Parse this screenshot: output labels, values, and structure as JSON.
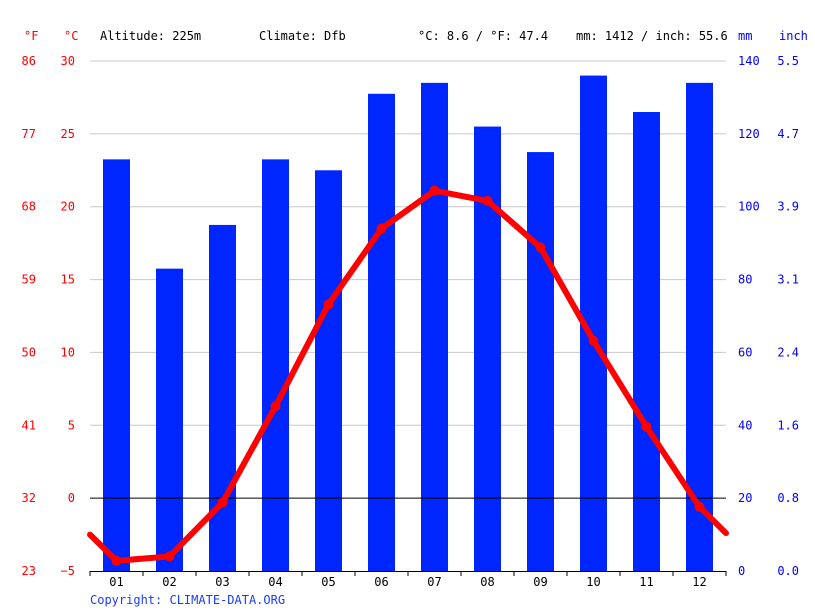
{
  "header": {
    "unit_f": "°F",
    "unit_c": "°C",
    "altitude": "Altitude: 225m",
    "climate": "Climate: Dfb",
    "temp_avg": "°C: 8.6 / °F: 47.4",
    "precip_total": "mm: 1412 / inch: 55.6",
    "unit_mm": "mm",
    "unit_inch": "inch"
  },
  "footer": {
    "copyright": "Copyright: CLIMATE-DATA.ORG"
  },
  "colors": {
    "temperature": "#ff0000",
    "precipitation": "#0026ff",
    "axis_left": "#ff0000",
    "axis_right": "#0000ff"
  },
  "chart_data": {
    "type": "bar",
    "categories": [
      "01",
      "02",
      "03",
      "04",
      "05",
      "06",
      "07",
      "08",
      "09",
      "10",
      "11",
      "12"
    ],
    "series": [
      {
        "kind": "bar",
        "axis": "right_mm",
        "values": [
          113,
          83,
          95,
          113,
          110,
          131,
          134,
          122,
          115,
          136,
          126,
          134
        ]
      },
      {
        "kind": "line",
        "axis": "left_c",
        "values": [
          -4.3,
          -4.0,
          -0.3,
          6.3,
          13.3,
          18.5,
          21.1,
          20.4,
          17.2,
          10.8,
          4.9,
          -0.6
        ]
      }
    ],
    "line_start_c": -2.5,
    "line_end_c": -2.4,
    "left_axis_c": {
      "ticks": [
        "30",
        "25",
        "20",
        "15",
        "10",
        "5",
        "0",
        "−5"
      ],
      "values": [
        30,
        25,
        20,
        15,
        10,
        5,
        0,
        -5
      ],
      "ylim": [
        -5,
        30
      ]
    },
    "left_axis_f": {
      "ticks": [
        "86",
        "77",
        "68",
        "59",
        "50",
        "41",
        "32",
        "23"
      ]
    },
    "right_axis_mm": {
      "ticks": [
        "140",
        "120",
        "100",
        "80",
        "60",
        "40",
        "20",
        "0"
      ],
      "values": [
        140,
        120,
        100,
        80,
        60,
        40,
        20,
        0
      ],
      "ylim": [
        0,
        140
      ]
    },
    "right_axis_inch": {
      "ticks": [
        "5.5",
        "4.7",
        "3.9",
        "3.1",
        "2.4",
        "1.6",
        "0.8",
        "0.0"
      ]
    },
    "grid": true
  }
}
